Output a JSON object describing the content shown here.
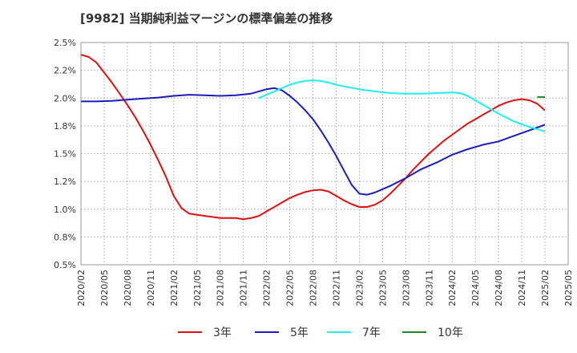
{
  "chart_data": {
    "type": "line",
    "title": "[9982]  当期純利益マージンの標準偏差の推移",
    "xlabel": "",
    "ylabel": "",
    "ylim": [
      0.5,
      2.5
    ],
    "grid": true,
    "legend_position": "bottom",
    "y_ticks": [
      "2.5%",
      "2.2%",
      "2.0%",
      "1.8%",
      "1.5%",
      "1.2%",
      "1.0%",
      "0.8%",
      "0.5%"
    ],
    "y_tick_values": [
      2.5,
      2.25,
      2.0,
      1.75,
      1.5,
      1.25,
      1.0,
      0.75,
      0.5
    ],
    "x_ticks": [
      "2020/02",
      "2020/05",
      "2020/08",
      "2020/11",
      "2021/02",
      "2021/05",
      "2021/08",
      "2021/11",
      "2022/02",
      "2022/05",
      "2022/08",
      "2022/11",
      "2023/02",
      "2023/05",
      "2023/08",
      "2023/11",
      "2024/02",
      "2024/05",
      "2024/08",
      "2024/11",
      "2025/02",
      "2025/05"
    ],
    "x_range": [
      "2020/02",
      "2025/05"
    ],
    "series": [
      {
        "name": "3年",
        "color": "#dd1111",
        "points": [
          [
            "2020/02",
            2.39
          ],
          [
            "2020/03",
            2.37
          ],
          [
            "2020/04",
            2.32
          ],
          [
            "2020/05",
            2.23
          ],
          [
            "2020/06",
            2.14
          ],
          [
            "2020/07",
            2.04
          ],
          [
            "2020/08",
            1.94
          ],
          [
            "2020/09",
            1.83
          ],
          [
            "2020/10",
            1.71
          ],
          [
            "2020/11",
            1.58
          ],
          [
            "2020/12",
            1.44
          ],
          [
            "2021/01",
            1.29
          ],
          [
            "2021/02",
            1.12
          ],
          [
            "2021/03",
            1.01
          ],
          [
            "2021/04",
            0.96
          ],
          [
            "2021/05",
            0.95
          ],
          [
            "2021/06",
            0.94
          ],
          [
            "2021/07",
            0.93
          ],
          [
            "2021/08",
            0.92
          ],
          [
            "2021/09",
            0.92
          ],
          [
            "2021/10",
            0.92
          ],
          [
            "2021/11",
            0.91
          ],
          [
            "2021/12",
            0.92
          ],
          [
            "2022/01",
            0.94
          ],
          [
            "2022/02",
            0.98
          ],
          [
            "2022/03",
            1.02
          ],
          [
            "2022/04",
            1.06
          ],
          [
            "2022/05",
            1.1
          ],
          [
            "2022/06",
            1.13
          ],
          [
            "2022/07",
            1.155
          ],
          [
            "2022/08",
            1.17
          ],
          [
            "2022/09",
            1.175
          ],
          [
            "2022/10",
            1.16
          ],
          [
            "2022/11",
            1.12
          ],
          [
            "2022/12",
            1.08
          ],
          [
            "2023/01",
            1.045
          ],
          [
            "2023/02",
            1.02
          ],
          [
            "2023/03",
            1.02
          ],
          [
            "2023/04",
            1.04
          ],
          [
            "2023/05",
            1.08
          ],
          [
            "2023/06",
            1.14
          ],
          [
            "2023/07",
            1.21
          ],
          [
            "2023/08",
            1.28
          ],
          [
            "2023/09",
            1.36
          ],
          [
            "2023/10",
            1.43
          ],
          [
            "2023/11",
            1.5
          ],
          [
            "2023/12",
            1.56
          ],
          [
            "2024/01",
            1.62
          ],
          [
            "2024/02",
            1.67
          ],
          [
            "2024/03",
            1.72
          ],
          [
            "2024/04",
            1.77
          ],
          [
            "2024/05",
            1.81
          ],
          [
            "2024/06",
            1.85
          ],
          [
            "2024/07",
            1.89
          ],
          [
            "2024/08",
            1.93
          ],
          [
            "2024/09",
            1.96
          ],
          [
            "2024/10",
            1.98
          ],
          [
            "2024/11",
            1.99
          ],
          [
            "2024/12",
            1.98
          ],
          [
            "2025/01",
            1.95
          ],
          [
            "2025/02",
            1.89
          ]
        ]
      },
      {
        "name": "5年",
        "color": "#1c1cbb",
        "points": [
          [
            "2020/02",
            1.97
          ],
          [
            "2020/04",
            1.97
          ],
          [
            "2020/06",
            1.975
          ],
          [
            "2020/08",
            1.985
          ],
          [
            "2020/10",
            1.995
          ],
          [
            "2020/12",
            2.005
          ],
          [
            "2021/02",
            2.02
          ],
          [
            "2021/04",
            2.03
          ],
          [
            "2021/06",
            2.025
          ],
          [
            "2021/08",
            2.02
          ],
          [
            "2021/10",
            2.025
          ],
          [
            "2021/12",
            2.04
          ],
          [
            "2022/01",
            2.06
          ],
          [
            "2022/02",
            2.08
          ],
          [
            "2022/03",
            2.09
          ],
          [
            "2022/04",
            2.07
          ],
          [
            "2022/05",
            2.02
          ],
          [
            "2022/06",
            1.96
          ],
          [
            "2022/07",
            1.89
          ],
          [
            "2022/08",
            1.81
          ],
          [
            "2022/09",
            1.71
          ],
          [
            "2022/10",
            1.6
          ],
          [
            "2022/11",
            1.48
          ],
          [
            "2022/12",
            1.35
          ],
          [
            "2023/01",
            1.22
          ],
          [
            "2023/02",
            1.14
          ],
          [
            "2023/03",
            1.13
          ],
          [
            "2023/04",
            1.15
          ],
          [
            "2023/05",
            1.18
          ],
          [
            "2023/06",
            1.21
          ],
          [
            "2023/08",
            1.28
          ],
          [
            "2023/10",
            1.36
          ],
          [
            "2023/12",
            1.42
          ],
          [
            "2024/02",
            1.49
          ],
          [
            "2024/04",
            1.54
          ],
          [
            "2024/06",
            1.58
          ],
          [
            "2024/08",
            1.61
          ],
          [
            "2024/10",
            1.66
          ],
          [
            "2024/12",
            1.71
          ],
          [
            "2025/02",
            1.76
          ]
        ]
      },
      {
        "name": "7年",
        "color": "#22eeee",
        "points": [
          [
            "2022/01",
            2.0
          ],
          [
            "2022/02",
            2.03
          ],
          [
            "2022/03",
            2.06
          ],
          [
            "2022/04",
            2.09
          ],
          [
            "2022/05",
            2.12
          ],
          [
            "2022/06",
            2.14
          ],
          [
            "2022/07",
            2.155
          ],
          [
            "2022/08",
            2.16
          ],
          [
            "2022/09",
            2.155
          ],
          [
            "2022/10",
            2.14
          ],
          [
            "2022/11",
            2.12
          ],
          [
            "2022/12",
            2.105
          ],
          [
            "2023/02",
            2.08
          ],
          [
            "2023/04",
            2.06
          ],
          [
            "2023/06",
            2.045
          ],
          [
            "2023/08",
            2.04
          ],
          [
            "2023/10",
            2.04
          ],
          [
            "2023/12",
            2.045
          ],
          [
            "2024/02",
            2.05
          ],
          [
            "2024/03",
            2.045
          ],
          [
            "2024/04",
            2.02
          ],
          [
            "2024/06",
            1.94
          ],
          [
            "2024/08",
            1.86
          ],
          [
            "2024/10",
            1.79
          ],
          [
            "2024/12",
            1.74
          ],
          [
            "2025/02",
            1.7
          ]
        ]
      },
      {
        "name": "10年",
        "color": "#228822",
        "points": [
          [
            "2025/01",
            2.01
          ],
          [
            "2025/02",
            2.01
          ]
        ]
      }
    ]
  }
}
